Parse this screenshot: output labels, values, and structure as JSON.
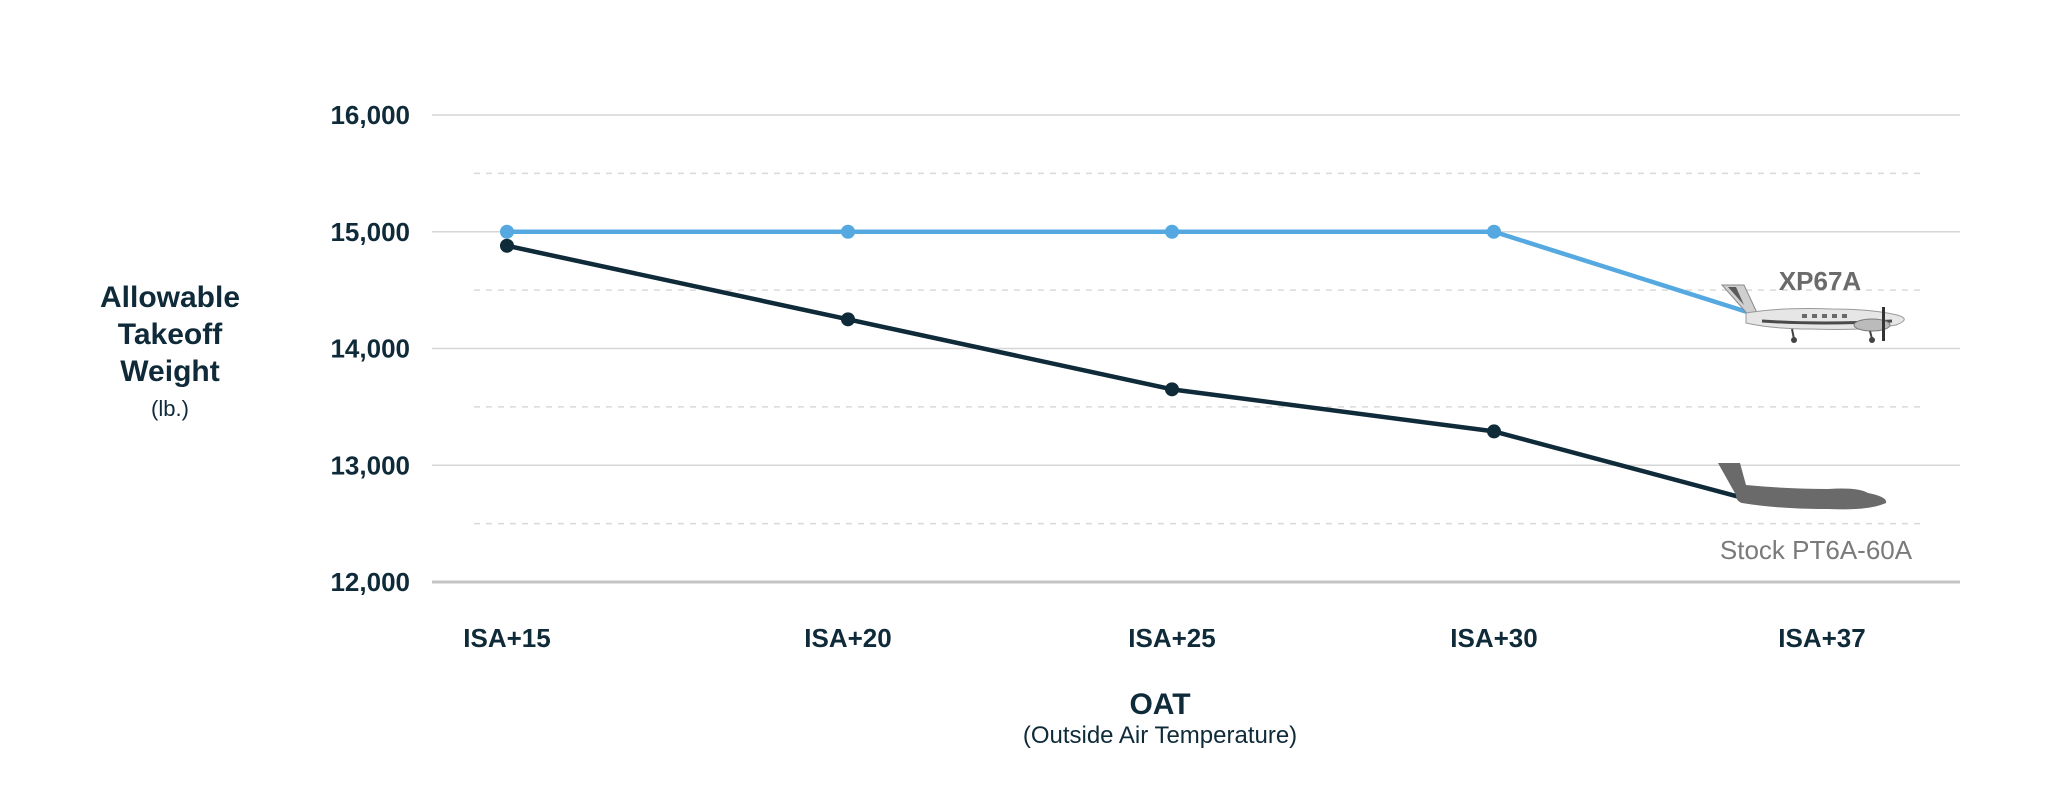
{
  "chart_data": {
    "type": "line",
    "xlabel": "OAT",
    "xlabel_sub": "(Outside Air Temperature)",
    "ylabel_lines": [
      "Allowable",
      "Takeoff",
      "Weight"
    ],
    "ylabel_unit": "(lb.)",
    "categories": [
      "ISA+15",
      "ISA+20",
      "ISA+25",
      "ISA+30",
      "ISA+37"
    ],
    "ylim": [
      12000,
      16000
    ],
    "yticks": [
      12000,
      13000,
      14000,
      15000,
      16000
    ],
    "ytick_labels": [
      "12,000",
      "13,000",
      "14,000",
      "15,000",
      "16,000"
    ],
    "grid": "major solid, minor dashed",
    "series": [
      {
        "name": "XP67A",
        "color": "#55a8e0",
        "icon": "king-air-airplane-icon",
        "values": [
          15000,
          15000,
          15000,
          15000,
          14300
        ]
      },
      {
        "name": "Stock PT6A-60A",
        "color": "#0f2a38",
        "icon": "airplane-silhouette-icon",
        "values": [
          14880,
          14250,
          13650,
          13290,
          12700
        ]
      }
    ]
  }
}
